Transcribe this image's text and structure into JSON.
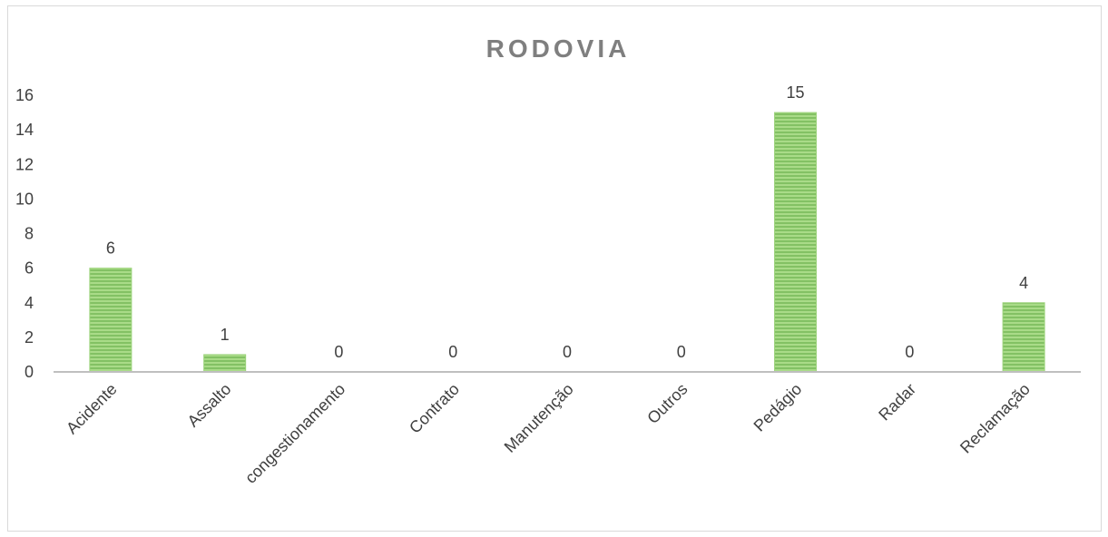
{
  "chart_data": {
    "type": "bar",
    "title": "RODOVIA",
    "categories": [
      "Acidente",
      "Assalto",
      "congestionamento",
      "Contrato",
      "Manutenção",
      "Outros",
      "Pedágio",
      "Radar",
      "Reclamação"
    ],
    "values": [
      6,
      1,
      0,
      0,
      0,
      0,
      15,
      0,
      4
    ],
    "ylim": [
      0,
      16
    ],
    "yticks": [
      0,
      2,
      4,
      6,
      8,
      10,
      12,
      14,
      16
    ],
    "grid": false,
    "legend": "none",
    "data_labels": true,
    "colors": {
      "bar_fill": "#9bd27a",
      "bar_stripe": "#6ab04c",
      "axis": "#bfbfbf",
      "title": "#7f7f7f",
      "text": "#404040"
    }
  }
}
